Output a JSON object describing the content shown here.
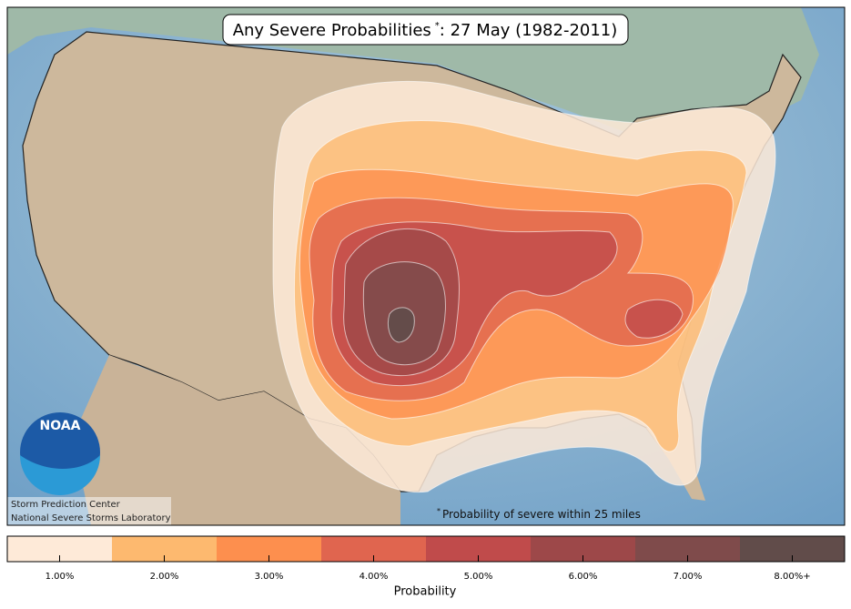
{
  "title": {
    "main": "Any Severe Probabilities",
    "mark": "*",
    "rest": ": 27 May (1982-2011)"
  },
  "footnote": {
    "mark": "*",
    "text": "Probability of severe within 25 miles"
  },
  "credits": [
    "Storm Prediction Center",
    "National Severe Storms Laboratory"
  ],
  "logo": "NOAA",
  "legend": {
    "title": "Probability",
    "items": [
      {
        "label": "1.00%",
        "color": "#feead8"
      },
      {
        "label": "2.00%",
        "color": "#fdb96f"
      },
      {
        "label": "3.00%",
        "color": "#fd8f4e"
      },
      {
        "label": "4.00%",
        "color": "#e0654f"
      },
      {
        "label": "5.00%",
        "color": "#c04b4b"
      },
      {
        "label": "6.00%",
        "color": "#9d4849"
      },
      {
        "label": "7.00%",
        "color": "#7f4b4b"
      },
      {
        "label": "8.00%+",
        "color": "#614c4a"
      }
    ]
  }
}
